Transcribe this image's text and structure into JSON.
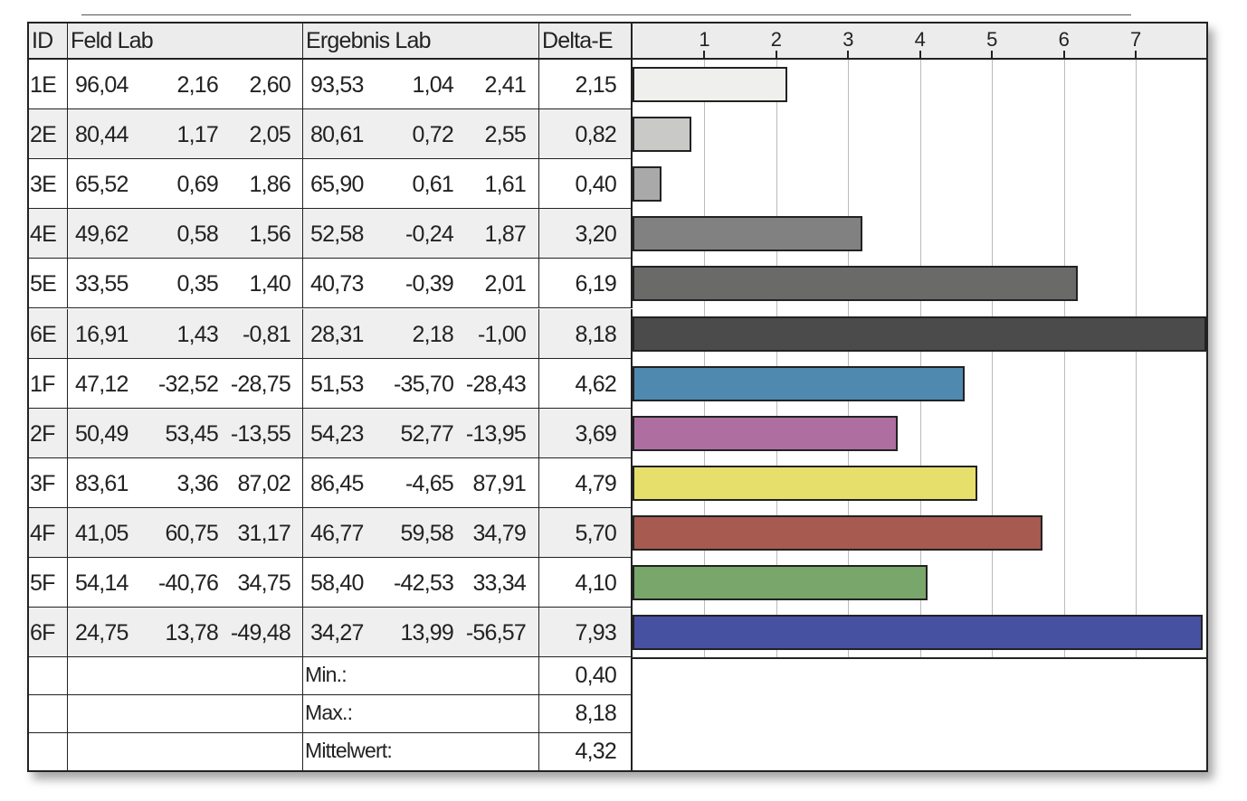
{
  "headers": {
    "id": "ID",
    "feld": "Feld Lab",
    "ergebnis": "Ergebnis Lab",
    "delta": "Delta-E"
  },
  "rows": [
    {
      "id": "1E",
      "feld": [
        "96,04",
        "2,16",
        "2,60"
      ],
      "ergebnis": [
        "93,53",
        "1,04",
        "2,41"
      ],
      "delta": "2,15"
    },
    {
      "id": "2E",
      "feld": [
        "80,44",
        "1,17",
        "2,05"
      ],
      "ergebnis": [
        "80,61",
        "0,72",
        "2,55"
      ],
      "delta": "0,82"
    },
    {
      "id": "3E",
      "feld": [
        "65,52",
        "0,69",
        "1,86"
      ],
      "ergebnis": [
        "65,90",
        "0,61",
        "1,61"
      ],
      "delta": "0,40"
    },
    {
      "id": "4E",
      "feld": [
        "49,62",
        "0,58",
        "1,56"
      ],
      "ergebnis": [
        "52,58",
        "-0,24",
        "1,87"
      ],
      "delta": "3,20"
    },
    {
      "id": "5E",
      "feld": [
        "33,55",
        "0,35",
        "1,40"
      ],
      "ergebnis": [
        "40,73",
        "-0,39",
        "2,01"
      ],
      "delta": "6,19"
    },
    {
      "id": "6E",
      "feld": [
        "16,91",
        "1,43",
        "-0,81"
      ],
      "ergebnis": [
        "28,31",
        "2,18",
        "-1,00"
      ],
      "delta": "8,18"
    },
    {
      "id": "1F",
      "feld": [
        "47,12",
        "-32,52",
        "-28,75"
      ],
      "ergebnis": [
        "51,53",
        "-35,70",
        "-28,43"
      ],
      "delta": "4,62"
    },
    {
      "id": "2F",
      "feld": [
        "50,49",
        "53,45",
        "-13,55"
      ],
      "ergebnis": [
        "54,23",
        "52,77",
        "-13,95"
      ],
      "delta": "3,69"
    },
    {
      "id": "3F",
      "feld": [
        "83,61",
        "3,36",
        "87,02"
      ],
      "ergebnis": [
        "86,45",
        "-4,65",
        "87,91"
      ],
      "delta": "4,79"
    },
    {
      "id": "4F",
      "feld": [
        "41,05",
        "60,75",
        "31,17"
      ],
      "ergebnis": [
        "46,77",
        "59,58",
        "34,79"
      ],
      "delta": "5,70"
    },
    {
      "id": "5F",
      "feld": [
        "54,14",
        "-40,76",
        "34,75"
      ],
      "ergebnis": [
        "58,40",
        "-42,53",
        "33,34"
      ],
      "delta": "4,10"
    },
    {
      "id": "6F",
      "feld": [
        "24,75",
        "13,78",
        "-49,48"
      ],
      "ergebnis": [
        "34,27",
        "13,99",
        "-56,57"
      ],
      "delta": "7,93"
    }
  ],
  "summary": [
    {
      "label": "Min.:",
      "value": "0,40"
    },
    {
      "label": "Max.:",
      "value": "8,18"
    },
    {
      "label": "Mittelwert:",
      "value": "4,32"
    }
  ],
  "chart_data": {
    "type": "bar",
    "orientation": "horizontal",
    "categories": [
      "1E",
      "2E",
      "3E",
      "4E",
      "5E",
      "6E",
      "1F",
      "2F",
      "3F",
      "4F",
      "5F",
      "6F"
    ],
    "values": [
      2.15,
      0.82,
      0.4,
      3.2,
      6.19,
      8.18,
      4.62,
      3.69,
      4.79,
      5.7,
      4.1,
      7.93
    ],
    "colors": [
      "#efefed",
      "#c9c9c7",
      "#a9a9a9",
      "#818181",
      "#6a6a68",
      "#4b4b4b",
      "#5089b0",
      "#ae6fa0",
      "#e6df6c",
      "#a65a50",
      "#79a66a",
      "#4751a2"
    ],
    "xticks": [
      "1",
      "2",
      "3",
      "4",
      "5",
      "6",
      "7"
    ],
    "xlim": [
      0,
      7.98
    ],
    "grid": true,
    "title": "",
    "xlabel": "",
    "ylabel": ""
  }
}
